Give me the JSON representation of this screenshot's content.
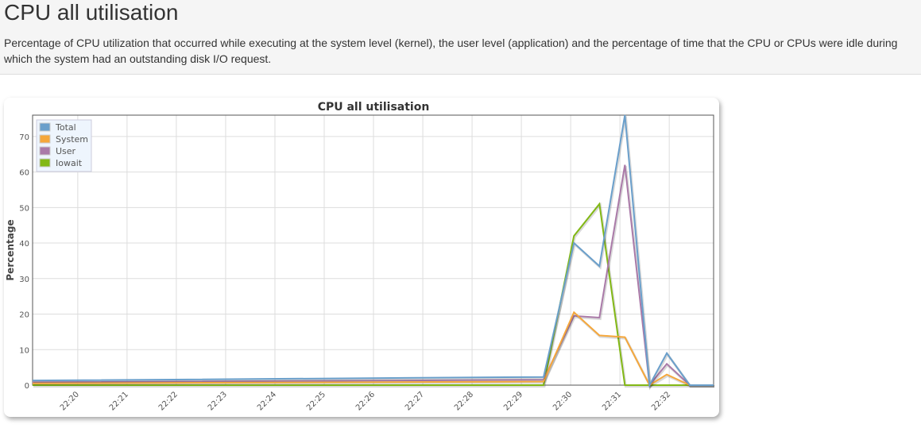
{
  "header": {
    "title": "CPU all utilisation",
    "description": "Percentage of CPU utilization that occurred while executing at the system level (kernel), the user level (application) and the percentage of time that the CPU or CPUs were idle during which the system had an outstanding disk I/O request."
  },
  "chart_data": {
    "type": "line",
    "title": "CPU all utilisation",
    "xlabel": "",
    "ylabel": "Percentage",
    "ylim": [
      0,
      76
    ],
    "xlim": [
      "22:19:05",
      "22:32:54"
    ],
    "x_ticks": [
      "22:20",
      "22:21",
      "22:22",
      "22:23",
      "22:24",
      "22:25",
      "22:26",
      "22:27",
      "22:28",
      "22:29",
      "22:30",
      "22:31",
      "22:32"
    ],
    "y_ticks": [
      0,
      10,
      20,
      30,
      40,
      50,
      60,
      70
    ],
    "grid": true,
    "legend": "top-left",
    "x": [
      "22:19:05",
      "22:29:27",
      "22:30:04",
      "22:30:35",
      "22:31:06",
      "22:31:36",
      "22:31:57",
      "22:32:25",
      "22:32:54"
    ],
    "series": [
      {
        "name": "Total",
        "color": "#6a9fcb",
        "values": [
          1.3,
          2.3,
          40,
          33.5,
          76,
          0,
          9,
          0,
          0
        ]
      },
      {
        "name": "System",
        "color": "#f5a73b",
        "values": [
          0.5,
          1,
          20.5,
          14,
          13.5,
          0,
          3,
          0,
          0
        ]
      },
      {
        "name": "User",
        "color": "#aa7aa8",
        "values": [
          0.8,
          1.5,
          19.5,
          19,
          62,
          0,
          6,
          0,
          0
        ]
      },
      {
        "name": "Iowait",
        "color": "#82b815",
        "values": [
          0,
          0,
          42,
          51,
          0,
          0,
          0,
          0,
          0
        ]
      }
    ]
  }
}
